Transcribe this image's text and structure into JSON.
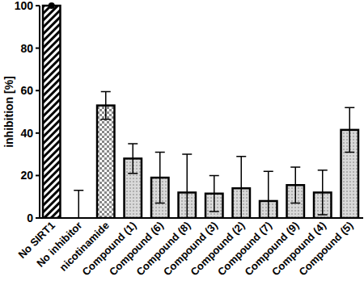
{
  "chart_data": {
    "type": "bar",
    "y_label": "inhibition [%]",
    "categories": [
      "No SIRT1",
      "No inhibitor",
      "nicotinamide",
      "Compound (1)",
      "Compound (6)",
      "Compound (8)",
      "Compound (3)",
      "Compound (2)",
      "Compound (7)",
      "Compound (9)",
      "Compound (4)",
      "Compound (5)"
    ],
    "values": [
      100,
      0,
      53,
      28,
      19,
      12,
      11.5,
      14,
      8,
      15.5,
      12,
      41.5
    ],
    "errors": [
      0,
      13,
      6.5,
      7,
      12,
      18,
      8.5,
      15,
      14,
      8.5,
      10.5,
      10.5
    ],
    "colors": [
      "#ffffff",
      "#ffffff",
      "#ffffff",
      "#d9d9d9",
      "#d9d9d9",
      "#d9d9d9",
      "#d9d9d9",
      "#d9d9d9",
      "#d9d9d9",
      "#d9d9d9",
      "#d9d9d9",
      "#d9d9d9"
    ],
    "ylim": [
      0,
      100
    ],
    "yticks": [
      0,
      20,
      40,
      60,
      80,
      100
    ],
    "grid": false
  }
}
